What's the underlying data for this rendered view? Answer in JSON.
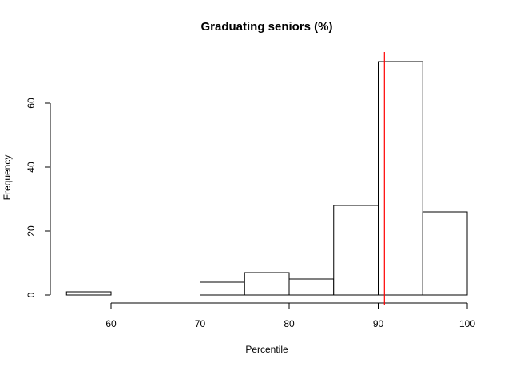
{
  "chart_data": {
    "type": "histogram",
    "title": "Graduating seniors (%)",
    "xlabel": "Percentile",
    "ylabel": "Frequency",
    "xlim": [
      55,
      100
    ],
    "ylim": [
      0,
      73
    ],
    "x_ticks": [
      60,
      70,
      80,
      90,
      100
    ],
    "y_ticks": [
      0,
      20,
      40,
      60
    ],
    "bins": [
      {
        "start": 55,
        "end": 60,
        "count": 1
      },
      {
        "start": 60,
        "end": 65,
        "count": 0
      },
      {
        "start": 65,
        "end": 70,
        "count": 0
      },
      {
        "start": 70,
        "end": 75,
        "count": 4
      },
      {
        "start": 75,
        "end": 80,
        "count": 7
      },
      {
        "start": 80,
        "end": 85,
        "count": 5
      },
      {
        "start": 85,
        "end": 90,
        "count": 28
      },
      {
        "start": 90,
        "end": 95,
        "count": 73
      },
      {
        "start": 95,
        "end": 100,
        "count": 26
      }
    ],
    "reference_line": {
      "x": 90.7,
      "color": "#ff0000"
    },
    "bar_fill": "#ffffff",
    "bar_stroke": "#000000",
    "grid": false
  }
}
